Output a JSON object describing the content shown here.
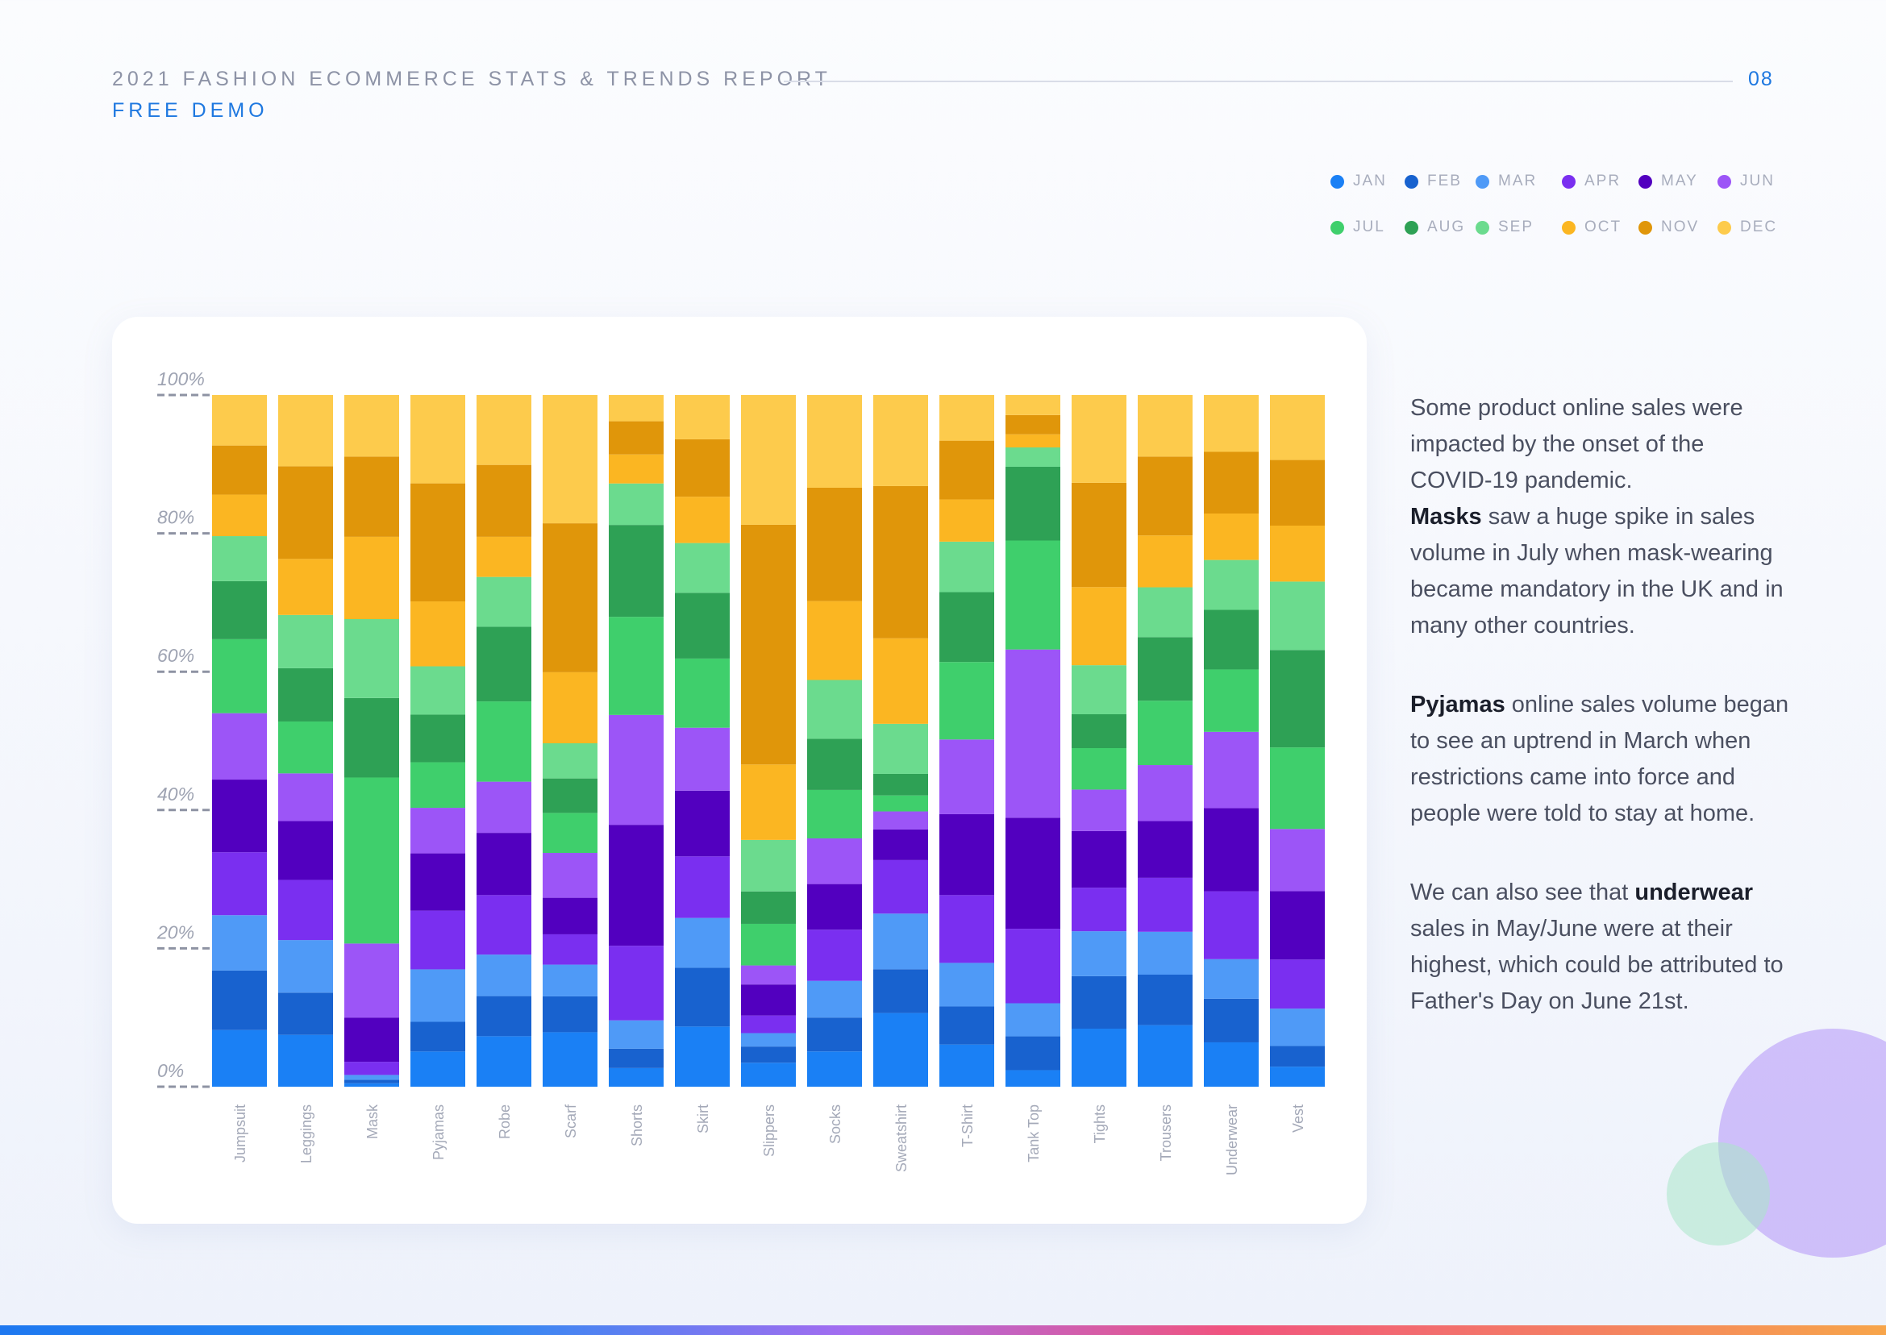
{
  "header": {
    "title": "2021 FASHION ECOMMERCE STATS & TRENDS REPORT",
    "subtitle": "FREE DEMO",
    "page": "08"
  },
  "legend": [
    {
      "label": "JAN",
      "color": "#1a80f5"
    },
    {
      "label": "FEB",
      "color": "#1862cf"
    },
    {
      "label": "MAR",
      "color": "#4f9af7"
    },
    {
      "label": "APR",
      "color": "#7a2ff0"
    },
    {
      "label": "MAY",
      "color": "#5200bf"
    },
    {
      "label": "JUN",
      "color": "#9c55f7"
    },
    {
      "label": "JUL",
      "color": "#3fcf6c"
    },
    {
      "label": "AUG",
      "color": "#2ea155"
    },
    {
      "label": "SEP",
      "color": "#6bdb8e"
    },
    {
      "label": "OCT",
      "color": "#fbb622"
    },
    {
      "label": "NOV",
      "color": "#e0960a"
    },
    {
      "label": "DEC",
      "color": "#fdcb4c"
    }
  ],
  "chart_data": {
    "type": "bar",
    "stacked": true,
    "normalized": true,
    "ylim": [
      0,
      100
    ],
    "yticks": [
      "0%",
      "20%",
      "40%",
      "60%",
      "80%",
      "100%"
    ],
    "grid": false,
    "legend_position": "top-right",
    "categories": [
      "Jumpsuit",
      "Leggings",
      "Mask",
      "Pyjamas",
      "Robe",
      "Scarf",
      "Shorts",
      "Skirt",
      "Slippers",
      "Socks",
      "Sweatshirt",
      "T-Shirt",
      "Tank Top",
      "Tights",
      "Trousers",
      "Underwear",
      "Vest"
    ],
    "series": [
      {
        "name": "JAN",
        "color": "#1a80f5",
        "values": [
          8.2,
          7.5,
          0.5,
          5.1,
          7.3,
          7.9,
          2.7,
          8.7,
          3.4,
          5.1,
          10.6,
          6.1,
          2.4,
          8.4,
          8.9,
          6.4,
          2.9
        ]
      },
      {
        "name": "FEB",
        "color": "#1862cf",
        "values": [
          8.6,
          6.1,
          0.5,
          4.3,
          5.8,
          5.2,
          2.8,
          8.5,
          2.3,
          4.9,
          6.3,
          5.5,
          4.9,
          7.6,
          7.3,
          6.3,
          3.0
        ]
      },
      {
        "name": "MAR",
        "color": "#4f9af7",
        "values": [
          8.0,
          7.6,
          0.7,
          7.6,
          6.0,
          4.6,
          4.1,
          7.2,
          1.9,
          5.3,
          8.0,
          6.3,
          4.8,
          6.5,
          6.2,
          5.7,
          5.4
        ]
      },
      {
        "name": "APR",
        "color": "#7a2ff0",
        "values": [
          9.1,
          8.7,
          1.9,
          8.5,
          8.6,
          4.4,
          10.8,
          8.9,
          2.5,
          7.4,
          7.7,
          9.8,
          10.8,
          6.3,
          7.8,
          9.8,
          7.1
        ]
      },
      {
        "name": "MAY",
        "color": "#5200bf",
        "values": [
          10.5,
          8.5,
          6.4,
          8.3,
          9.0,
          5.3,
          17.5,
          9.5,
          4.4,
          6.6,
          4.4,
          11.7,
          16.1,
          8.2,
          8.2,
          12.0,
          9.9
        ]
      },
      {
        "name": "JUN",
        "color": "#9c55f7",
        "values": [
          9.6,
          6.9,
          10.7,
          6.6,
          7.4,
          6.5,
          15.9,
          9.1,
          2.7,
          6.6,
          2.6,
          10.8,
          24.4,
          6.0,
          8.1,
          11.0,
          9.0
        ]
      },
      {
        "name": "JUL",
        "color": "#3fcf6c",
        "values": [
          10.7,
          7.5,
          24.0,
          6.6,
          11.6,
          5.8,
          14.2,
          10.0,
          5.9,
          7.0,
          2.3,
          11.2,
          15.8,
          6.0,
          9.3,
          9.0,
          11.8
        ]
      },
      {
        "name": "AUG",
        "color": "#2ea155",
        "values": [
          8.4,
          7.7,
          11.5,
          6.9,
          10.8,
          5.0,
          13.3,
          9.5,
          4.6,
          7.4,
          3.1,
          10.1,
          10.7,
          4.9,
          9.2,
          8.6,
          14.1
        ]
      },
      {
        "name": "SEP",
        "color": "#6bdb8e",
        "values": [
          6.5,
          7.7,
          11.4,
          7.0,
          7.2,
          5.1,
          6.0,
          7.2,
          7.3,
          8.5,
          7.2,
          7.3,
          2.8,
          7.1,
          7.2,
          7.2,
          9.9
        ]
      },
      {
        "name": "OCT",
        "color": "#fbb622",
        "values": [
          6.0,
          8.1,
          11.9,
          9.4,
          5.8,
          10.3,
          4.2,
          6.7,
          10.7,
          11.4,
          12.3,
          6.1,
          1.9,
          11.3,
          7.5,
          6.7,
          8.1
        ]
      },
      {
        "name": "NOV",
        "color": "#e0960a",
        "values": [
          7.1,
          13.4,
          11.6,
          17.1,
          10.4,
          21.6,
          4.8,
          8.3,
          34.0,
          16.4,
          21.9,
          8.5,
          2.8,
          15.1,
          11.4,
          8.9,
          9.5
        ]
      },
      {
        "name": "DEC",
        "color": "#fdcb4c",
        "values": [
          7.3,
          10.3,
          8.9,
          12.8,
          10.1,
          18.6,
          3.8,
          6.4,
          18.4,
          13.4,
          13.1,
          6.6,
          2.9,
          12.7,
          8.9,
          8.2,
          9.4
        ]
      }
    ]
  },
  "notes": {
    "p1_a": "Some product online sales were impacted by the onset of the COVID-19 pandemic.",
    "p1_bold": "Masks",
    "p1_b": " saw a huge spike in sales volume in July when mask-wearing became mandatory in the UK and in many other countries.",
    "p2_bold": "Pyjamas",
    "p2_a": " online sales volume began to see an uptrend in March when restrictions came into force and people were told to stay at home.",
    "p3_a": "We can also see that ",
    "p3_bold": "underwear",
    "p3_b": " sales in May/June were at their highest, which could be attributed to Father's Day on June 21st."
  }
}
